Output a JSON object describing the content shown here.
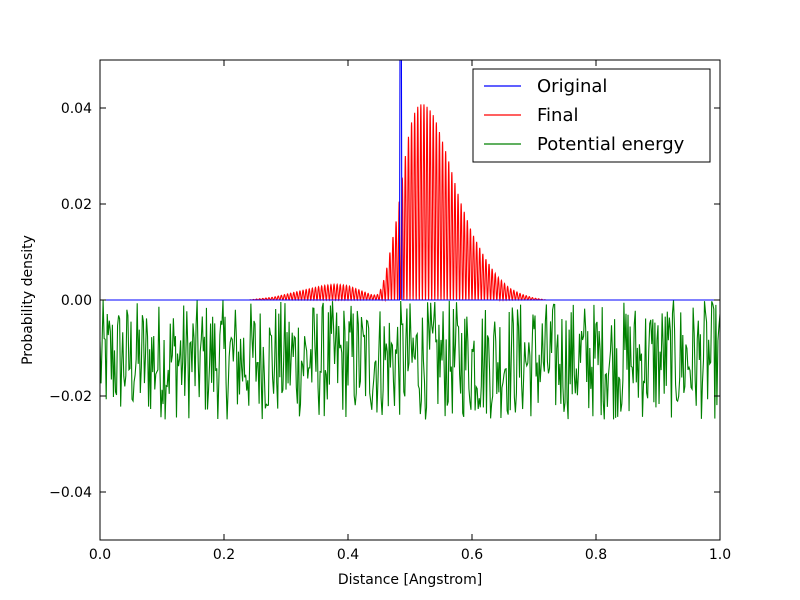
{
  "chart_data": {
    "type": "line",
    "title": "",
    "xlabel": "Distance [Angstrom]",
    "ylabel": "Probability density",
    "xlim": [
      0.0,
      1.0
    ],
    "ylim": [
      -0.05,
      0.05
    ],
    "xticks": [
      "0.0",
      "0.2",
      "0.4",
      "0.6",
      "0.8",
      "1.0"
    ],
    "yticks": [
      "−0.04",
      "−0.02",
      "0.00",
      "0.02",
      "0.04"
    ],
    "xtick_values": [
      0.0,
      0.2,
      0.4,
      0.6,
      0.8,
      1.0
    ],
    "ytick_values": [
      -0.04,
      -0.02,
      0.0,
      0.02,
      0.04
    ],
    "grid": false,
    "legend_position": "top-right",
    "series": [
      {
        "name": "Original",
        "color": "#0000ff",
        "style": "narrow spike",
        "x": [
          0.0,
          0.483,
          0.4835,
          0.484,
          0.4845,
          0.485,
          0.4855,
          0.486,
          0.4865,
          0.487,
          1.0
        ],
        "y": [
          0.0,
          0.0,
          0.03,
          0.06,
          0.08,
          0.06,
          0.08,
          0.06,
          0.03,
          0.0,
          0.0
        ]
      },
      {
        "name": "Final",
        "color": "#ff0000",
        "style": "oscillating",
        "envelope_x": [
          0.0,
          0.24,
          0.28,
          0.32,
          0.36,
          0.38,
          0.4,
          0.42,
          0.44,
          0.45,
          0.46,
          0.48,
          0.49,
          0.5,
          0.51,
          0.52,
          0.53,
          0.54,
          0.56,
          0.58,
          0.6,
          0.62,
          0.64,
          0.66,
          0.68,
          0.7,
          0.72,
          1.0
        ],
        "envelope_y": [
          0.0,
          0.0,
          0.0006,
          0.0018,
          0.003,
          0.0033,
          0.003,
          0.002,
          0.001,
          0.0012,
          0.005,
          0.018,
          0.028,
          0.036,
          0.04,
          0.041,
          0.04,
          0.038,
          0.03,
          0.021,
          0.014,
          0.009,
          0.005,
          0.0025,
          0.0012,
          0.0004,
          0.0,
          0.0
        ]
      },
      {
        "name": "Potential energy",
        "color": "#008000",
        "style": "noisy",
        "y_range": [
          -0.025,
          0.0
        ]
      }
    ]
  }
}
